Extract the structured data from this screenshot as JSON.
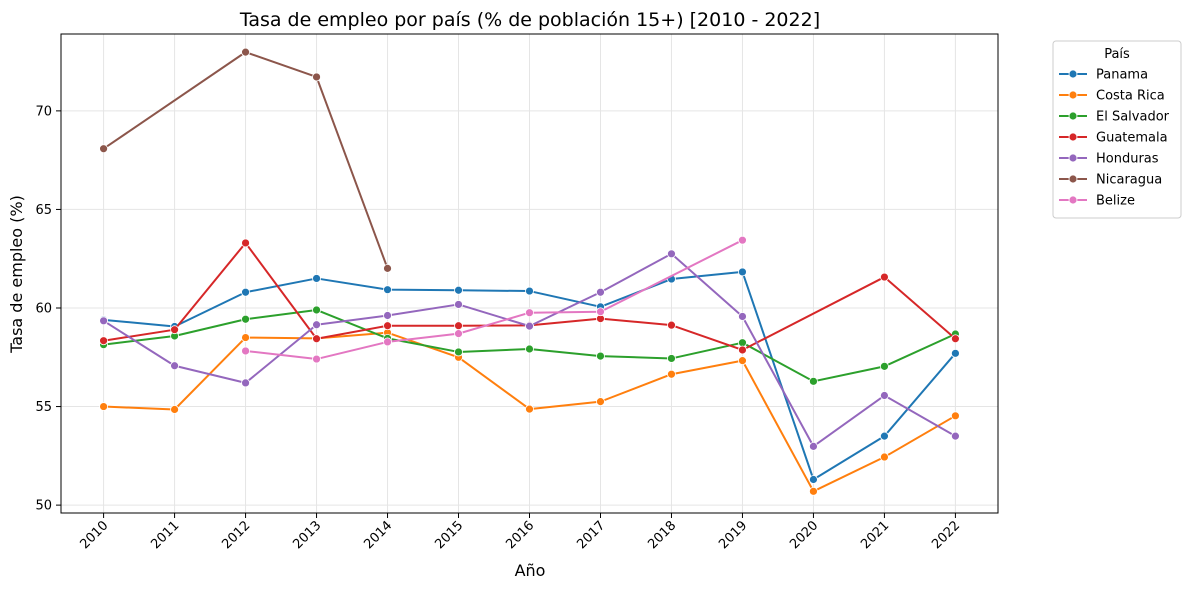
{
  "chart_data": {
    "type": "line",
    "title": "Tasa de empleo por país (% de población 15+) [2010 - 2022]",
    "xlabel": "Año",
    "ylabel": "Tasa de empleo (%)",
    "x": [
      2010,
      2011,
      2012,
      2013,
      2014,
      2015,
      2016,
      2017,
      2018,
      2019,
      2020,
      2021,
      2022
    ],
    "x_tick_labels": [
      "2010",
      "2011",
      "2012",
      "2013",
      "2014",
      "2015",
      "2016",
      "2017",
      "2018",
      "2019",
      "2020",
      "2021",
      "2022"
    ],
    "y_ticks": [
      50,
      55,
      60,
      65,
      70
    ],
    "y_tick_labels": [
      "50",
      "55",
      "60",
      "65",
      "70"
    ],
    "ylim": [
      49.6,
      73.9
    ],
    "xlim": [
      2009.4,
      2022.6
    ],
    "grid": true,
    "legend_title": "País",
    "legend_position": "outside-right",
    "series": [
      {
        "name": "Panama",
        "color": "#1f77b4",
        "values": [
          59.4,
          59.06,
          60.8,
          61.5,
          60.93,
          60.9,
          60.86,
          60.06,
          61.47,
          61.83,
          51.3,
          53.5,
          57.7
        ]
      },
      {
        "name": "Costa Rica",
        "color": "#ff7f0e",
        "values": [
          55.0,
          54.85,
          58.5,
          58.46,
          58.75,
          57.5,
          54.87,
          55.25,
          56.64,
          57.33,
          50.7,
          52.44,
          54.53
        ]
      },
      {
        "name": "El Salvador",
        "color": "#2ca02c",
        "values": [
          58.14,
          58.58,
          59.43,
          59.9,
          58.46,
          57.77,
          57.92,
          57.56,
          57.44,
          58.24,
          56.28,
          57.04,
          58.68
        ]
      },
      {
        "name": "Guatemala",
        "color": "#d62728",
        "values": [
          58.34,
          58.9,
          63.3,
          58.44,
          59.1,
          59.1,
          59.12,
          59.46,
          59.13,
          57.87,
          null,
          61.57,
          58.44
        ]
      },
      {
        "name": "Honduras",
        "color": "#9467bd",
        "values": [
          59.35,
          57.07,
          56.2,
          59.15,
          59.62,
          60.18,
          59.08,
          60.8,
          62.75,
          59.57,
          52.98,
          55.56,
          53.5
        ]
      },
      {
        "name": "Nicaragua",
        "color": "#8c564b",
        "values": [
          68.08,
          null,
          72.98,
          71.72,
          62.01,
          null,
          null,
          null,
          null,
          null,
          null,
          null,
          null
        ]
      },
      {
        "name": "Belize",
        "color": "#e377c2",
        "values": [
          null,
          null,
          57.82,
          57.41,
          58.28,
          58.7,
          59.76,
          59.81,
          null,
          63.44,
          null,
          null,
          null
        ]
      }
    ]
  }
}
